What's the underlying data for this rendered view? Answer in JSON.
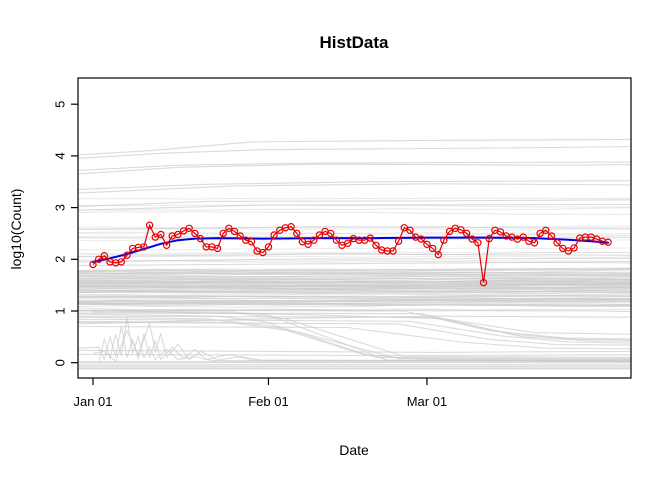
{
  "chart": {
    "title": "HistData",
    "x_label": "Date",
    "y_label": "log10(Count)"
  },
  "chart_data": {
    "type": "line",
    "title": "HistData",
    "xlabel": "Date",
    "ylabel": "log10(Count)",
    "x_unit": "days since Jan 01",
    "x_domain_days": [
      -2.7,
      95.5
    ],
    "ylim": [
      -0.3,
      5.5
    ],
    "y_ticks": [
      0,
      1,
      2,
      3,
      4,
      5
    ],
    "x_ticks": [
      {
        "label": "Jan 01",
        "day": 0
      },
      {
        "label": "Feb 01",
        "day": 31
      },
      {
        "label": "Mar 01",
        "day": 59
      }
    ],
    "grid": false,
    "legend": false,
    "series": [
      {
        "name": "daily-log10-count",
        "style": "line-with-open-circles",
        "color": "#e60000",
        "start_day": 0,
        "step_days": 1,
        "values": [
          1.9,
          2.0,
          2.07,
          1.95,
          1.93,
          1.95,
          2.08,
          2.21,
          2.23,
          2.24,
          2.66,
          2.43,
          2.48,
          2.27,
          2.45,
          2.48,
          2.55,
          2.6,
          2.5,
          2.4,
          2.24,
          2.24,
          2.21,
          2.5,
          2.6,
          2.54,
          2.45,
          2.37,
          2.34,
          2.16,
          2.13,
          2.24,
          2.47,
          2.56,
          2.61,
          2.63,
          2.5,
          2.34,
          2.29,
          2.37,
          2.47,
          2.54,
          2.5,
          2.37,
          2.27,
          2.31,
          2.4,
          2.37,
          2.37,
          2.41,
          2.27,
          2.18,
          2.16,
          2.16,
          2.35,
          2.61,
          2.56,
          2.43,
          2.39,
          2.29,
          2.21,
          2.09,
          2.37,
          2.54,
          2.6,
          2.57,
          2.5,
          2.39,
          2.32,
          1.55,
          2.4,
          2.56,
          2.53,
          2.45,
          2.43,
          2.39,
          2.43,
          2.35,
          2.32,
          2.5,
          2.56,
          2.45,
          2.32,
          2.21,
          2.16,
          2.22,
          2.41,
          2.43,
          2.43,
          2.39,
          2.35,
          2.33
        ]
      },
      {
        "name": "smooth-trend",
        "style": "line",
        "color": "#0000e6",
        "points": [
          [
            0,
            1.95
          ],
          [
            3,
            2.02
          ],
          [
            6,
            2.1
          ],
          [
            9,
            2.2
          ],
          [
            12,
            2.3
          ],
          [
            15,
            2.37
          ],
          [
            18,
            2.4
          ],
          [
            22,
            2.41
          ],
          [
            30,
            2.4
          ],
          [
            40,
            2.41
          ],
          [
            50,
            2.41
          ],
          [
            60,
            2.42
          ],
          [
            70,
            2.42
          ],
          [
            78,
            2.41
          ],
          [
            84,
            2.38
          ],
          [
            88,
            2.35
          ],
          [
            91,
            2.32
          ]
        ]
      }
    ],
    "background_series": {
      "name": "historical-ensemble",
      "color": "#cccccc",
      "description": "many light-gray history lines spanning the full date range",
      "procedural": {
        "seed": 42,
        "groups": [
          {
            "count": 85,
            "level_range": [
              1.0,
              1.78
            ],
            "trend": 0.06,
            "wobble": 0.035,
            "opacity": 0.55
          },
          {
            "count": 14,
            "level_range": [
              1.95,
              2.62
            ],
            "trend": 0.05,
            "wobble": 0.03,
            "opacity": 0.4
          },
          {
            "count": 4,
            "level_range": [
              2.8,
              3.25
            ],
            "trend": 0.05,
            "wobble": 0.025,
            "opacity": 0.45
          }
        ]
      },
      "feature_polylines": [
        [
          [
            -2.7,
            4.02
          ],
          [
            10,
            4.1
          ],
          [
            28,
            4.27
          ],
          [
            60,
            4.3
          ],
          [
            95.5,
            4.32
          ]
        ],
        [
          [
            -2.7,
            3.95
          ],
          [
            12,
            4.05
          ],
          [
            30,
            4.12
          ],
          [
            70,
            4.15
          ],
          [
            95.5,
            4.18
          ]
        ],
        [
          [
            -2.7,
            3.72
          ],
          [
            15,
            3.82
          ],
          [
            40,
            3.86
          ],
          [
            95.5,
            3.88
          ]
        ],
        [
          [
            -2.7,
            3.65
          ],
          [
            15,
            3.78
          ],
          [
            40,
            3.84
          ],
          [
            80,
            3.82
          ],
          [
            95.5,
            3.83
          ]
        ],
        [
          [
            -2.7,
            3.35
          ],
          [
            20,
            3.45
          ],
          [
            50,
            3.5
          ],
          [
            95.5,
            3.52
          ]
        ],
        [
          [
            -2.7,
            3.28
          ],
          [
            25,
            3.42
          ],
          [
            60,
            3.46
          ],
          [
            95.5,
            3.44
          ]
        ],
        [
          [
            -2.7,
            3.02
          ],
          [
            20,
            3.12
          ],
          [
            60,
            3.13
          ],
          [
            95.5,
            3.15
          ]
        ],
        [
          [
            -2.7,
            2.95
          ],
          [
            30,
            3.05
          ],
          [
            95.5,
            3.06
          ]
        ],
        [
          [
            -2.7,
            2.58
          ],
          [
            40,
            2.63
          ],
          [
            95.5,
            2.6
          ]
        ],
        [
          [
            -2.7,
            1.95
          ],
          [
            30,
            2.0
          ],
          [
            95.5,
            2.02
          ]
        ],
        [
          [
            -2.7,
            1.88
          ],
          [
            50,
            1.92
          ],
          [
            95.5,
            1.95
          ]
        ],
        [
          [
            -2.7,
            2.05
          ],
          [
            40,
            2.1
          ],
          [
            95.5,
            2.08
          ]
        ],
        [
          [
            -2.7,
            1.02
          ],
          [
            55,
            1.0
          ],
          [
            70,
            0.62
          ],
          [
            83,
            0.48
          ],
          [
            95.5,
            0.46
          ]
        ],
        [
          [
            -2.7,
            0.96
          ],
          [
            58,
            0.95
          ],
          [
            74,
            0.55
          ],
          [
            86,
            0.45
          ],
          [
            95.5,
            0.44
          ]
        ],
        [
          [
            -2.7,
            0.9
          ],
          [
            60,
            0.88
          ],
          [
            76,
            0.5
          ],
          [
            88,
            0.42
          ],
          [
            95.5,
            0.42
          ]
        ],
        [
          [
            -2.7,
            0.84
          ],
          [
            56,
            0.8
          ],
          [
            72,
            0.52
          ],
          [
            84,
            0.4
          ],
          [
            95.5,
            0.38
          ]
        ],
        [
          [
            -2.7,
            0.78
          ],
          [
            54,
            0.75
          ],
          [
            70,
            0.45
          ],
          [
            82,
            0.35
          ],
          [
            95.5,
            0.34
          ]
        ],
        [
          [
            5,
            1.0
          ],
          [
            40,
            0.92
          ],
          [
            62,
            0.85
          ],
          [
            78,
            0.58
          ],
          [
            95.5,
            0.55
          ]
        ],
        [
          [
            -2.7,
            0.7
          ],
          [
            45,
            0.68
          ],
          [
            65,
            0.4
          ],
          [
            80,
            0.28
          ],
          [
            95.5,
            0.27
          ]
        ],
        [
          [
            -2.7,
            1.0
          ],
          [
            25,
            0.98
          ],
          [
            31,
            0.92
          ],
          [
            52,
            0.05
          ],
          [
            95.5,
            0.03
          ]
        ],
        [
          [
            -2.7,
            0.94
          ],
          [
            22,
            0.9
          ],
          [
            30,
            0.8
          ],
          [
            50,
            0.1
          ],
          [
            95.5,
            0.08
          ]
        ],
        [
          [
            0,
            0.98
          ],
          [
            26,
            0.95
          ],
          [
            34,
            0.85
          ],
          [
            55,
            0.12
          ],
          [
            95.5,
            0.1
          ]
        ],
        [
          [
            -2.7,
            0.88
          ],
          [
            20,
            0.85
          ],
          [
            32,
            0.7
          ],
          [
            48,
            0.15
          ],
          [
            60,
            0.06
          ],
          [
            95.5,
            0.05
          ]
        ],
        [
          [
            -2.7,
            0.8
          ],
          [
            24,
            0.78
          ],
          [
            36,
            0.6
          ],
          [
            54,
            0.08
          ],
          [
            95.5,
            0.06
          ]
        ],
        [
          [
            -2.7,
            0.75
          ],
          [
            30,
            0.85
          ],
          [
            60,
            0.9
          ],
          [
            95.5,
            0.88
          ]
        ],
        [
          [
            1,
            0.02
          ],
          [
            2,
            0.45
          ],
          [
            3,
            0.08
          ],
          [
            4,
            0.55
          ],
          [
            5,
            0.14
          ],
          [
            6,
            0.88
          ],
          [
            7,
            0.18
          ],
          [
            8,
            0.5
          ],
          [
            9,
            0.1
          ],
          [
            10,
            0.3
          ],
          [
            11,
            0.06
          ],
          [
            13,
            0.26
          ],
          [
            15,
            0.06
          ],
          [
            18,
            0.12
          ],
          [
            21,
            0.04
          ],
          [
            95.5,
            0.03
          ]
        ],
        [
          [
            -2.7,
            0.28
          ],
          [
            1,
            0.3
          ],
          [
            2,
            0.06
          ],
          [
            3,
            0.5
          ],
          [
            4,
            0.12
          ],
          [
            5,
            0.7
          ],
          [
            6,
            0.1
          ],
          [
            7,
            0.44
          ],
          [
            8,
            0.08
          ],
          [
            9,
            0.56
          ],
          [
            10,
            0.12
          ],
          [
            11,
            0.42
          ],
          [
            12,
            0.06
          ],
          [
            14,
            0.3
          ],
          [
            16,
            0.08
          ],
          [
            18,
            0.26
          ],
          [
            20,
            0.06
          ],
          [
            24,
            0.16
          ],
          [
            28,
            0.05
          ],
          [
            95.5,
            0.04
          ]
        ],
        [
          [
            0,
            0.18
          ],
          [
            2,
            0.22
          ],
          [
            4,
            0.03
          ],
          [
            6,
            0.62
          ],
          [
            8,
            0.16
          ],
          [
            10,
            0.76
          ],
          [
            11,
            0.22
          ],
          [
            12,
            0.56
          ],
          [
            13,
            0.1
          ],
          [
            15,
            0.36
          ],
          [
            17,
            0.06
          ],
          [
            19,
            0.22
          ],
          [
            22,
            0.05
          ],
          [
            26,
            0.12
          ],
          [
            30,
            0.04
          ],
          [
            95.5,
            0.03
          ]
        ],
        [
          [
            -2.7,
            0.16
          ],
          [
            50,
            0.14
          ],
          [
            95.5,
            0.15
          ]
        ],
        [
          [
            -2.7,
            0.24
          ],
          [
            60,
            0.2
          ],
          [
            95.5,
            0.22
          ]
        ],
        [
          [
            -2.7,
            0.02
          ],
          [
            95.5,
            0.02
          ]
        ],
        [
          [
            -2.7,
            0.0
          ],
          [
            95.5,
            0.0
          ]
        ],
        [
          [
            -2.7,
            -0.04
          ],
          [
            95.5,
            -0.04
          ]
        ],
        [
          [
            -2.7,
            -0.07
          ],
          [
            95.5,
            -0.07
          ]
        ],
        [
          [
            -2.7,
            -0.1
          ],
          [
            95.5,
            -0.1
          ]
        ],
        [
          [
            -2.7,
            -0.12
          ],
          [
            95.5,
            -0.12
          ]
        ]
      ]
    }
  }
}
